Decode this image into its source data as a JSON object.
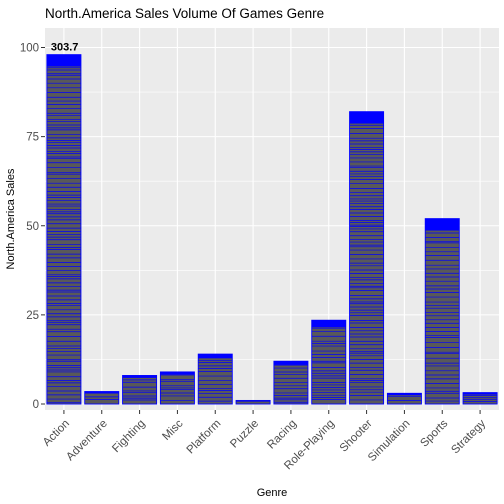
{
  "chart_data": {
    "type": "bar",
    "title": "North.America Sales Volume Of Games Genre",
    "xlabel": "Genre",
    "ylabel": "North.America Sales",
    "categories": [
      "Action",
      "Adventure",
      "Fighting",
      "Misc",
      "Platform",
      "Puzzle",
      "Racing",
      "Role-Playing",
      "Shooter",
      "Simulation",
      "Sports",
      "Strategy"
    ],
    "values": [
      98,
      3.5,
      8,
      9,
      14,
      1,
      12,
      23.5,
      82,
      3,
      52,
      3.2
    ],
    "ylim": [
      0,
      105
    ],
    "yticks": [
      0,
      25,
      50,
      75,
      100
    ],
    "grid": true,
    "bar_fill": "#595959",
    "bar_outline": "#0000ff",
    "background": "#ebebeb",
    "gridline_color": "#ffffff",
    "annotations": [
      {
        "category": "Action",
        "text": "303.7"
      }
    ]
  }
}
